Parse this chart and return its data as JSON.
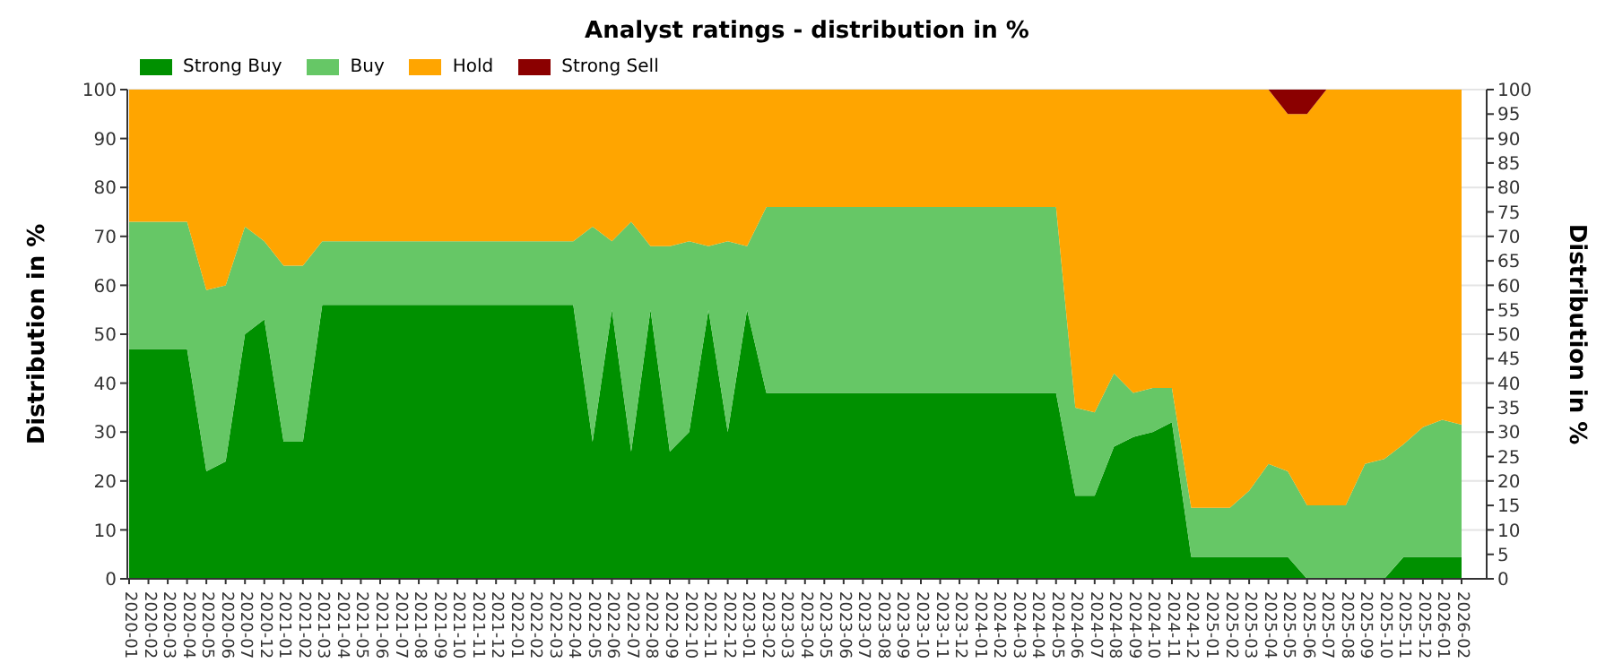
{
  "chart_data": {
    "type": "area",
    "title": "Analyst ratings - distribution in %",
    "ylabel": "Distribution in %",
    "y2label": "Distribution in %",
    "stacked": true,
    "grid": "y",
    "legend": "top left",
    "categories": [
      "2020-01",
      "2020-02",
      "2020-03",
      "2020-04",
      "2020-05",
      "2020-06",
      "2020-07",
      "2020-12",
      "2021-01",
      "2021-02",
      "2021-03",
      "2021-04",
      "2021-05",
      "2021-06",
      "2021-07",
      "2021-08",
      "2021-09",
      "2021-10",
      "2021-11",
      "2021-12",
      "2022-01",
      "2022-02",
      "2022-03",
      "2022-04",
      "2022-05",
      "2022-06",
      "2022-07",
      "2022-08",
      "2022-09",
      "2022-10",
      "2022-11",
      "2022-12",
      "2023-01",
      "2023-02",
      "2023-03",
      "2023-04",
      "2023-05",
      "2023-06",
      "2023-07",
      "2023-08",
      "2023-09",
      "2023-10",
      "2023-11",
      "2023-12",
      "2024-01",
      "2024-02",
      "2024-03",
      "2024-04",
      "2024-05",
      "2024-06",
      "2024-07",
      "2024-08",
      "2024-09",
      "2024-10",
      "2024-11",
      "2024-12",
      "2025-01",
      "2025-02",
      "2025-03",
      "2025-04",
      "2025-05",
      "2025-06",
      "2025-07",
      "2025-08",
      "2025-09",
      "2025-10",
      "2025-11",
      "2025-12",
      "2026-01",
      "2026-02"
    ],
    "ylim": [
      0,
      100
    ],
    "yticks": [
      0,
      10,
      20,
      30,
      40,
      50,
      60,
      70,
      80,
      90,
      100
    ],
    "y2lim": [
      0,
      100
    ],
    "y2ticks": [
      0,
      5,
      10,
      15,
      20,
      25,
      30,
      35,
      40,
      45,
      50,
      55,
      60,
      65,
      70,
      75,
      80,
      85,
      90,
      95,
      100
    ],
    "series": [
      {
        "name": "Strong Buy",
        "color": "#009000",
        "values": [
          47,
          47,
          47,
          47,
          22,
          24,
          50,
          53,
          28,
          28,
          56,
          56,
          56,
          56,
          56,
          56,
          56,
          56,
          56,
          56,
          56,
          56,
          56,
          56,
          28,
          55,
          26,
          55,
          26,
          30,
          55,
          30,
          55,
          38,
          38,
          38,
          38,
          38,
          38,
          38,
          38,
          38,
          38,
          38,
          38,
          38,
          38,
          38,
          38,
          17,
          17,
          27,
          29,
          30,
          32,
          4.5,
          4.5,
          4.5,
          4.5,
          4.5,
          4.5,
          0,
          0,
          0,
          0,
          0,
          4.5,
          4.5,
          4.5,
          4.5
        ]
      },
      {
        "name": "Buy",
        "color": "#66c766",
        "values": [
          26,
          26,
          26,
          26,
          37,
          36,
          22,
          16,
          36,
          36,
          13,
          13,
          13,
          13,
          13,
          13,
          13,
          13,
          13,
          13,
          13,
          13,
          13,
          13,
          44,
          14,
          47,
          13,
          42,
          39,
          13,
          39,
          13,
          38,
          38,
          38,
          38,
          38,
          38,
          38,
          38,
          38,
          38,
          38,
          38,
          38,
          38,
          38,
          38,
          18,
          17,
          15,
          9,
          9,
          7,
          10,
          10,
          10,
          13.5,
          19,
          17.5,
          15,
          15,
          15,
          23.5,
          24.5,
          23,
          26.5,
          28,
          27
        ]
      },
      {
        "name": "Hold",
        "color": "#ffa500",
        "values": [
          27,
          27,
          27,
          27,
          41,
          40,
          28,
          31,
          36,
          36,
          31,
          31,
          31,
          31,
          31,
          31,
          31,
          31,
          31,
          31,
          31,
          31,
          31,
          31,
          28,
          31,
          27,
          32,
          32,
          31,
          32,
          31,
          32,
          24,
          24,
          24,
          24,
          24,
          24,
          24,
          24,
          24,
          24,
          24,
          24,
          24,
          24,
          24,
          24,
          65,
          66,
          58,
          62,
          61,
          61,
          85.5,
          85.5,
          85.5,
          82,
          76.5,
          73,
          80,
          85,
          85,
          76.5,
          75.5,
          72.5,
          69,
          67.5,
          68.5
        ]
      },
      {
        "name": "Strong Sell",
        "color": "#8b0000",
        "values": [
          0,
          0,
          0,
          0,
          0,
          0,
          0,
          0,
          0,
          0,
          0,
          0,
          0,
          0,
          0,
          0,
          0,
          0,
          0,
          0,
          0,
          0,
          0,
          0,
          0,
          0,
          0,
          0,
          0,
          0,
          0,
          0,
          0,
          0,
          0,
          0,
          0,
          0,
          0,
          0,
          0,
          0,
          0,
          0,
          0,
          0,
          0,
          0,
          0,
          0,
          0,
          0,
          0,
          0,
          0,
          0,
          0,
          0,
          0,
          0,
          5,
          5,
          0,
          0,
          0,
          0,
          0,
          0,
          0,
          0
        ]
      }
    ]
  }
}
